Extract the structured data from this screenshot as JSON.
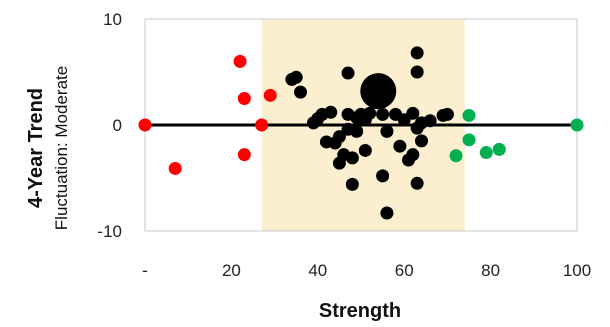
{
  "chart_data": {
    "type": "scatter",
    "title": "",
    "xlabel": "Strength",
    "ylabel": "4-Year Trend",
    "ylabel_sub": "Fluctuation: Moderate",
    "xlim": [
      0,
      100
    ],
    "ylim": [
      -10,
      10
    ],
    "x_ticks": [
      {
        "value": 0,
        "label": "-"
      },
      {
        "value": 20,
        "label": "20"
      },
      {
        "value": 40,
        "label": "40"
      },
      {
        "value": 60,
        "label": "60"
      },
      {
        "value": 80,
        "label": "80"
      },
      {
        "value": 100,
        "label": "100"
      }
    ],
    "y_ticks": [
      {
        "value": 10,
        "label": "10"
      },
      {
        "value": 0,
        "label": "0"
      },
      {
        "value": -10,
        "label": "-10"
      }
    ],
    "grid": false,
    "highlight_band": {
      "x_from": 27,
      "x_to": 74,
      "color": "#FCEFCF"
    },
    "zero_line": true,
    "colors": {
      "weak": "#FF0000",
      "mid": "#000000",
      "strong": "#00B050",
      "band": "#FCEFCF"
    },
    "highlight_point": {
      "x": 54,
      "y": 3.2,
      "color": "#000000"
    },
    "series": [
      {
        "color": "#FF0000",
        "points": [
          [
            0,
            0
          ],
          [
            7,
            -4.1
          ],
          [
            22,
            6
          ],
          [
            23,
            2.5
          ],
          [
            23,
            -2.8
          ],
          [
            27,
            0
          ],
          [
            29,
            2.8
          ]
        ]
      },
      {
        "color": "#000000",
        "points": [
          [
            34,
            4.3
          ],
          [
            35,
            4.5
          ],
          [
            36,
            3.1
          ],
          [
            39,
            0.2
          ],
          [
            40,
            0.6
          ],
          [
            41,
            1
          ],
          [
            42,
            -1.6
          ],
          [
            43,
            1.2
          ],
          [
            44,
            -1.7
          ],
          [
            45,
            -3.6
          ],
          [
            45,
            -1.1
          ],
          [
            46,
            -2.8
          ],
          [
            47,
            4.9
          ],
          [
            47,
            1
          ],
          [
            47,
            -0.4
          ],
          [
            48,
            -5.6
          ],
          [
            48,
            -3.1
          ],
          [
            49,
            0.7
          ],
          [
            49,
            -0.6
          ],
          [
            50,
            1
          ],
          [
            51,
            -2.4
          ],
          [
            51,
            0.5
          ],
          [
            52,
            1.1
          ],
          [
            55,
            -4.8
          ],
          [
            55,
            1
          ],
          [
            56,
            -8.3
          ],
          [
            56,
            -0.6
          ],
          [
            58,
            1
          ],
          [
            59,
            -2
          ],
          [
            60,
            0.5
          ],
          [
            61,
            -3.3
          ],
          [
            62,
            1.1
          ],
          [
            62,
            -2.8
          ],
          [
            63,
            6.8
          ],
          [
            63,
            5
          ],
          [
            63,
            -5.5
          ],
          [
            63,
            -0.3
          ],
          [
            64,
            -1.5
          ],
          [
            64,
            0.2
          ],
          [
            66,
            0.4
          ],
          [
            69,
            0.9
          ],
          [
            70,
            1
          ]
        ]
      },
      {
        "color": "#00B050",
        "points": [
          [
            72,
            -2.9
          ],
          [
            75,
            0.9
          ],
          [
            75,
            -1.4
          ],
          [
            79,
            -2.6
          ],
          [
            82,
            -2.3
          ],
          [
            100,
            0
          ]
        ]
      }
    ]
  }
}
